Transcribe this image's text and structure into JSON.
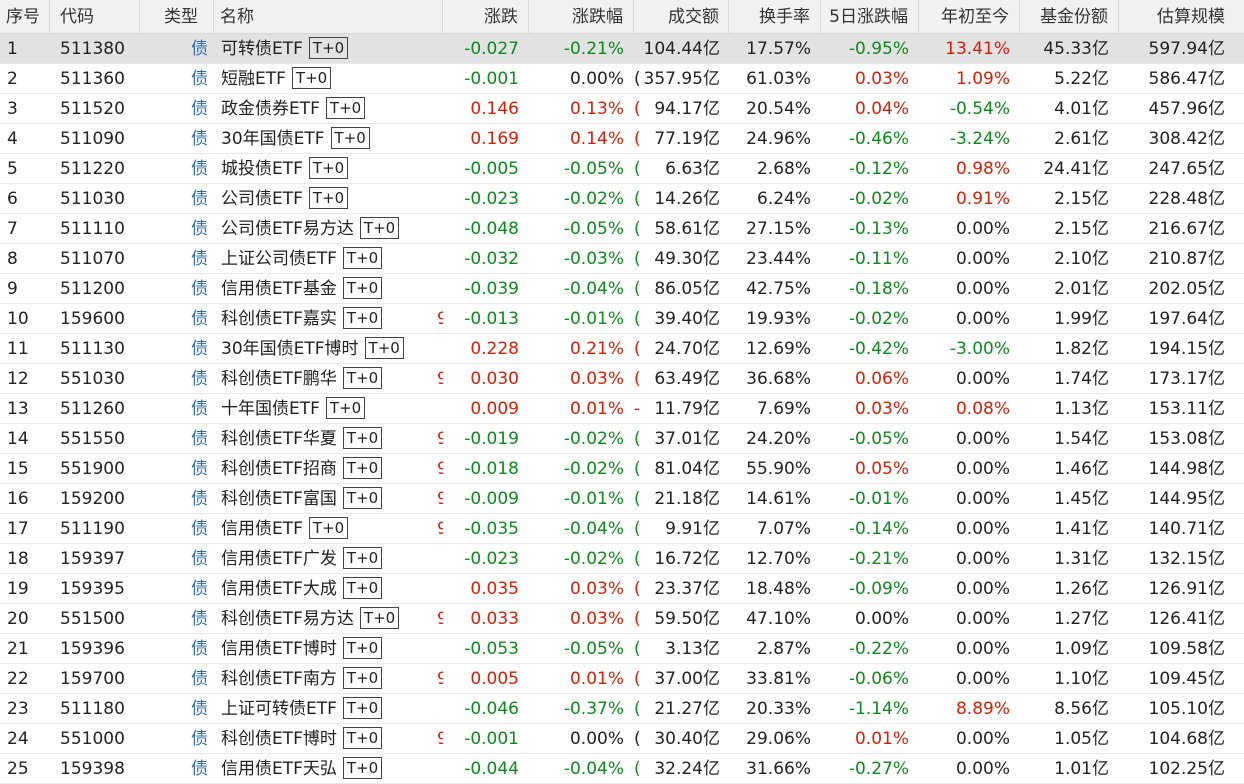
{
  "headers": [
    "序号",
    "代码",
    "类型",
    "名称",
    "涨跌",
    "涨跌幅",
    "成交额",
    "换手率",
    "5日涨跌幅",
    "年初至今",
    "基金份额",
    "估算规模"
  ],
  "tag_label": "T+0",
  "colors": {
    "up": "#d81e06",
    "down": "#0c8a1c",
    "flat": "#222222",
    "type": "#2b6cb0",
    "selected_row": "#e2e2e2"
  },
  "rows": [
    {
      "idx": "1",
      "code": "511380",
      "type": "债",
      "name": "可转债ETF",
      "tag": true,
      "chg": "-0.027",
      "pct": "-0.21%",
      "clip": "",
      "clip6": "",
      "amt": "104.44亿",
      "turn": "17.57%",
      "d5": "-0.95%",
      "ytd": "13.41%",
      "shares": "45.33亿",
      "size": "597.94亿"
    },
    {
      "idx": "2",
      "code": "511360",
      "type": "债",
      "name": "短融ETF",
      "tag": true,
      "chg": "-0.001",
      "pct": "0.00%",
      "clip": "",
      "clip6": "(",
      "amt": "357.95亿",
      "turn": "61.03%",
      "d5": "0.03%",
      "ytd": "1.09%",
      "shares": "5.22亿",
      "size": "586.47亿"
    },
    {
      "idx": "3",
      "code": "511520",
      "type": "债",
      "name": "政金债券ETF",
      "tag": true,
      "chg": "0.146",
      "pct": "0.13%",
      "clip": "",
      "clip6": "(",
      "amt": "94.17亿",
      "turn": "20.54%",
      "d5": "0.04%",
      "ytd": "-0.54%",
      "shares": "4.01亿",
      "size": "457.96亿"
    },
    {
      "idx": "4",
      "code": "511090",
      "type": "债",
      "name": "30年国债ETF",
      "tag": true,
      "chg": "0.169",
      "pct": "0.14%",
      "clip": "",
      "clip6": "(",
      "amt": "77.19亿",
      "turn": "24.96%",
      "d5": "-0.46%",
      "ytd": "-3.24%",
      "shares": "2.61亿",
      "size": "308.42亿"
    },
    {
      "idx": "5",
      "code": "511220",
      "type": "债",
      "name": "城投债ETF",
      "tag": true,
      "chg": "-0.005",
      "pct": "-0.05%",
      "clip": "",
      "clip6": "(",
      "amt": "6.63亿",
      "turn": "2.68%",
      "d5": "-0.12%",
      "ytd": "0.98%",
      "shares": "24.41亿",
      "size": "247.65亿"
    },
    {
      "idx": "6",
      "code": "511030",
      "type": "债",
      "name": "公司债ETF",
      "tag": true,
      "chg": "-0.023",
      "pct": "-0.02%",
      "clip": "",
      "clip6": "(",
      "amt": "14.26亿",
      "turn": "6.24%",
      "d5": "-0.02%",
      "ytd": "0.91%",
      "shares": "2.15亿",
      "size": "228.48亿"
    },
    {
      "idx": "7",
      "code": "511110",
      "type": "债",
      "name": "公司债ETF易方达",
      "tag": true,
      "chg": "-0.048",
      "pct": "-0.05%",
      "clip": "",
      "clip6": "(",
      "amt": "58.61亿",
      "turn": "27.15%",
      "d5": "-0.13%",
      "ytd": "0.00%",
      "shares": "2.15亿",
      "size": "216.67亿"
    },
    {
      "idx": "8",
      "code": "511070",
      "type": "债",
      "name": "上证公司债ETF",
      "tag": true,
      "chg": "-0.032",
      "pct": "-0.03%",
      "clip": "",
      "clip6": "(",
      "amt": "49.30亿",
      "turn": "23.44%",
      "d5": "-0.11%",
      "ytd": "0.00%",
      "shares": "2.10亿",
      "size": "210.87亿"
    },
    {
      "idx": "9",
      "code": "511200",
      "type": "债",
      "name": "信用债ETF基金",
      "tag": true,
      "chg": "-0.039",
      "pct": "-0.04%",
      "clip": "",
      "clip6": "(",
      "amt": "86.05亿",
      "turn": "42.75%",
      "d5": "-0.18%",
      "ytd": "0.00%",
      "shares": "2.01亿",
      "size": "202.05亿"
    },
    {
      "idx": "10",
      "code": "159600",
      "type": "债",
      "name": "科创债ETF嘉实",
      "tag": true,
      "chg": "-0.013",
      "pct": "-0.01%",
      "clip": "9",
      "clip6": "(",
      "amt": "39.40亿",
      "turn": "19.93%",
      "d5": "-0.02%",
      "ytd": "0.00%",
      "shares": "1.99亿",
      "size": "197.64亿"
    },
    {
      "idx": "11",
      "code": "511130",
      "type": "债",
      "name": "30年国债ETF博时",
      "tag": true,
      "chg": "0.228",
      "pct": "0.21%",
      "clip": "",
      "clip6": "(",
      "amt": "24.70亿",
      "turn": "12.69%",
      "d5": "-0.42%",
      "ytd": "-3.00%",
      "shares": "1.82亿",
      "size": "194.15亿"
    },
    {
      "idx": "12",
      "code": "551030",
      "type": "债",
      "name": "科创债ETF鹏华",
      "tag": true,
      "chg": "0.030",
      "pct": "0.03%",
      "clip": "9",
      "clip6": "(",
      "amt": "63.49亿",
      "turn": "36.68%",
      "d5": "0.06%",
      "ytd": "0.00%",
      "shares": "1.74亿",
      "size": "173.17亿"
    },
    {
      "idx": "13",
      "code": "511260",
      "type": "债",
      "name": "十年国债ETF",
      "tag": true,
      "chg": "0.009",
      "pct": "0.01%",
      "clip": "",
      "clip6": "-",
      "amt": "11.79亿",
      "turn": "7.69%",
      "d5": "0.03%",
      "ytd": "0.08%",
      "shares": "1.13亿",
      "size": "153.11亿"
    },
    {
      "idx": "14",
      "code": "551550",
      "type": "债",
      "name": "科创债ETF华夏",
      "tag": true,
      "chg": "-0.019",
      "pct": "-0.02%",
      "clip": "9",
      "clip6": "(",
      "amt": "37.01亿",
      "turn": "24.20%",
      "d5": "-0.05%",
      "ytd": "0.00%",
      "shares": "1.54亿",
      "size": "153.08亿"
    },
    {
      "idx": "15",
      "code": "551900",
      "type": "债",
      "name": "科创债ETF招商",
      "tag": true,
      "chg": "-0.018",
      "pct": "-0.02%",
      "clip": "9",
      "clip6": "(",
      "amt": "81.04亿",
      "turn": "55.90%",
      "d5": "0.05%",
      "ytd": "0.00%",
      "shares": "1.46亿",
      "size": "144.98亿"
    },
    {
      "idx": "16",
      "code": "159200",
      "type": "债",
      "name": "科创债ETF富国",
      "tag": true,
      "chg": "-0.009",
      "pct": "-0.01%",
      "clip": "9",
      "clip6": "(",
      "amt": "21.18亿",
      "turn": "14.61%",
      "d5": "-0.01%",
      "ytd": "0.00%",
      "shares": "1.45亿",
      "size": "144.95亿"
    },
    {
      "idx": "17",
      "code": "511190",
      "type": "债",
      "name": "信用债ETF",
      "tag": true,
      "chg": "-0.035",
      "pct": "-0.04%",
      "clip": "9",
      "clip6": "(",
      "amt": "9.91亿",
      "turn": "7.07%",
      "d5": "-0.14%",
      "ytd": "0.00%",
      "shares": "1.41亿",
      "size": "140.71亿"
    },
    {
      "idx": "18",
      "code": "159397",
      "type": "债",
      "name": "信用债ETF广发",
      "tag": true,
      "chg": "-0.023",
      "pct": "-0.02%",
      "clip": "",
      "clip6": "(",
      "amt": "16.72亿",
      "turn": "12.70%",
      "d5": "-0.21%",
      "ytd": "0.00%",
      "shares": "1.31亿",
      "size": "132.15亿"
    },
    {
      "idx": "19",
      "code": "159395",
      "type": "债",
      "name": "信用债ETF大成",
      "tag": true,
      "chg": "0.035",
      "pct": "0.03%",
      "clip": "",
      "clip6": "(",
      "amt": "23.37亿",
      "turn": "18.48%",
      "d5": "-0.09%",
      "ytd": "0.00%",
      "shares": "1.26亿",
      "size": "126.91亿"
    },
    {
      "idx": "20",
      "code": "551500",
      "type": "债",
      "name": "科创债ETF易方达",
      "tag": true,
      "chg": "0.033",
      "pct": "0.03%",
      "clip": "9",
      "clip6": "(",
      "amt": "59.50亿",
      "turn": "47.10%",
      "d5": "0.00%",
      "ytd": "0.00%",
      "shares": "1.27亿",
      "size": "126.41亿"
    },
    {
      "idx": "21",
      "code": "159396",
      "type": "债",
      "name": "信用债ETF博时",
      "tag": true,
      "chg": "-0.053",
      "pct": "-0.05%",
      "clip": "",
      "clip6": "(",
      "amt": "3.13亿",
      "turn": "2.87%",
      "d5": "-0.22%",
      "ytd": "0.00%",
      "shares": "1.09亿",
      "size": "109.58亿"
    },
    {
      "idx": "22",
      "code": "159700",
      "type": "债",
      "name": "科创债ETF南方",
      "tag": true,
      "chg": "0.005",
      "pct": "0.01%",
      "clip": "9",
      "clip6": "(",
      "amt": "37.00亿",
      "turn": "33.81%",
      "d5": "-0.06%",
      "ytd": "0.00%",
      "shares": "1.10亿",
      "size": "109.45亿"
    },
    {
      "idx": "23",
      "code": "511180",
      "type": "债",
      "name": "上证可转债ETF",
      "tag": true,
      "chg": "-0.046",
      "pct": "-0.37%",
      "clip": "",
      "clip6": "(",
      "amt": "21.27亿",
      "turn": "20.33%",
      "d5": "-1.14%",
      "ytd": "8.89%",
      "shares": "8.56亿",
      "size": "105.10亿"
    },
    {
      "idx": "24",
      "code": "551000",
      "type": "债",
      "name": "科创债ETF博时",
      "tag": true,
      "chg": "-0.001",
      "pct": "0.00%",
      "clip": "9",
      "clip6": "(",
      "amt": "30.40亿",
      "turn": "29.06%",
      "d5": "0.01%",
      "ytd": "0.00%",
      "shares": "1.05亿",
      "size": "104.68亿"
    },
    {
      "idx": "25",
      "code": "159398",
      "type": "债",
      "name": "信用债ETF天弘",
      "tag": true,
      "chg": "-0.044",
      "pct": "-0.04%",
      "clip": "",
      "clip6": "(",
      "amt": "32.24亿",
      "turn": "31.66%",
      "d5": "-0.27%",
      "ytd": "0.00%",
      "shares": "1.01亿",
      "size": "102.25亿"
    }
  ]
}
